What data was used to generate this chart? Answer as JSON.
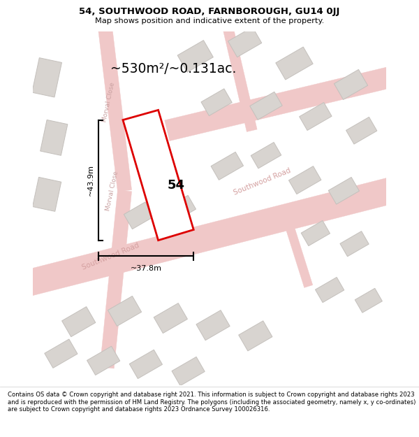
{
  "title": "54, SOUTHWOOD ROAD, FARNBOROUGH, GU14 0JJ",
  "subtitle": "Map shows position and indicative extent of the property.",
  "area_text": "~530m²/~0.131ac.",
  "house_number": "54",
  "dim_width_label": "~37.8m",
  "dim_height_label": "~43.9m",
  "footer": "Contains OS data © Crown copyright and database right 2021. This information is subject to Crown copyright and database rights 2023 and is reproduced with the permission of HM Land Registry. The polygons (including the associated geometry, namely x, y co-ordinates) are subject to Crown copyright and database rights 2023 Ordnance Survey 100026316.",
  "map_bg": "#f7f7f7",
  "road_color": "#f0c8c8",
  "road_edge": "#e8b8b8",
  "building_color": "#d8d4d0",
  "building_edge": "#c4c0bc",
  "highlight_color": "#dd0000",
  "highlight_fill": "#ffffff",
  "road_label_color": "#d4a0a0",
  "title_color": "#000000",
  "footer_color": "#000000",
  "morval_label_color": "#c8a0a0"
}
